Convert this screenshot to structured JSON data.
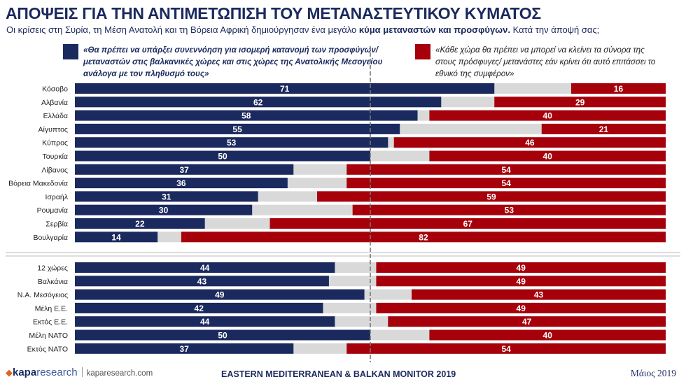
{
  "title": "ΑΠΟΨΕΙΣ ΓΙΑ ΤΗΝ ΑΝΤΙΜΕΤΩΠΙΣΗ ΤΟΥ ΜΕΤΑΝΑΣΤΕΥΤΙΚΟΥ ΚΥΜΑΤΟΣ",
  "subtitle": {
    "pre": "Οι κρίσεις στη Συρία, τη Μέση Ανατολή και τη Βόρεια Αφρική δημιούργησαν ένα μεγάλο ",
    "bold": "κύμα μεταναστών και προσφύγων.",
    "post": " Κατά την άποψή σας;"
  },
  "legend": {
    "left": "«Θα πρέπει να υπάρξει συνεννόηση για ισομερή κατανομή των προσφύγων/ μεταναστών στις βαλκανικές χώρες και στις χώρες της Ανατολικής Μεσογείου ανάλογα με τον πληθυσμό τους»",
    "right": "«Κάθε χώρα θα πρέπει να μπορεί να κλείνει τα σύνορα της στους πρόσφυγες/ μετανάστες εάν κρίνει ότι αυτό επιτάσσει το εθνικό της συμφέρον»",
    "left_color": "#1b2a5e",
    "right_color": "#a6000b"
  },
  "chart_data": {
    "type": "bar",
    "stacked": true,
    "orientation": "horizontal",
    "xlim": [
      0,
      100
    ],
    "reference_line": 50,
    "colors": {
      "left": "#1b2a5e",
      "middle": "#d9d9d9",
      "right": "#a6000b"
    },
    "groups": [
      {
        "categories": [
          "Κόσοβο",
          "Αλβανία",
          "Ελλάδα",
          "Αίγυπτος",
          "Κύπρος",
          "Τουρκία",
          "Λίβανος",
          "Βόρεια Μακεδονία",
          "Ισραήλ",
          "Ρουμανία",
          "Σερβία",
          "Βουλγαρία"
        ],
        "series": [
          {
            "values": [
              71,
              62,
              58,
              55,
              53,
              50,
              37,
              36,
              31,
              30,
              22,
              14
            ]
          },
          {
            "values": [
              16,
              29,
              40,
              21,
              46,
              40,
              54,
              54,
              59,
              53,
              67,
              82
            ]
          }
        ]
      },
      {
        "categories": [
          "12 χώρες",
          "Βαλκάνια",
          "Ν.Α. Μεσόγειος",
          "Μέλη Ε.Ε.",
          "Εκτός Ε.Ε.",
          "Μέλη ΝΑΤΟ",
          "Εκτός ΝΑΤΟ"
        ],
        "series": [
          {
            "values": [
              44,
              43,
              49,
              42,
              44,
              50,
              37
            ]
          },
          {
            "values": [
              49,
              49,
              43,
              49,
              47,
              40,
              54
            ]
          }
        ]
      }
    ]
  },
  "footer": {
    "logo_bold": "kapa",
    "logo_thin": "research",
    "url": "kaparesearch.com",
    "center": "EASTERN MEDITERRANEAN & BALKAN MONITOR 2019",
    "date": "Μάιος 2019"
  }
}
